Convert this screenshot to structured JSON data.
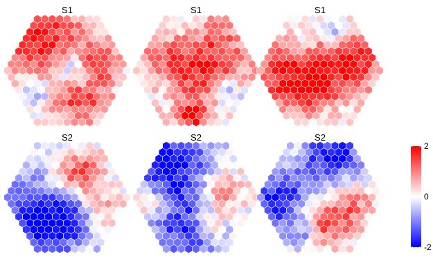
{
  "chart_data": {
    "type": "heatmap",
    "subtype": "hexagonal-map-grid",
    "rows": 2,
    "cols": 3,
    "panel_titles": [
      "S1",
      "S1",
      "S1",
      "S2",
      "S2",
      "S2"
    ],
    "color_scale": {
      "low": "#0000FF",
      "mid": "#FFFFFF",
      "high": "#FF0000",
      "limits": [
        -2,
        2
      ],
      "tick_labels": [
        "2",
        "0",
        "-2"
      ],
      "tick_values": [
        2,
        0,
        -2
      ]
    },
    "panels": [
      {
        "title": "S1",
        "hotspots": [
          {
            "u": 0.3,
            "v": 0.22,
            "value": 1.9,
            "spread": 0.26
          },
          {
            "u": 0.6,
            "v": 0.75,
            "value": 1.5,
            "spread": 0.2
          },
          {
            "u": 0.52,
            "v": 0.5,
            "value": -1.6,
            "spread": 0.13
          },
          {
            "u": 0.78,
            "v": 0.4,
            "value": 1.4,
            "spread": 0.12
          },
          {
            "u": 0.25,
            "v": 0.72,
            "value": -1.2,
            "spread": 0.1
          }
        ]
      },
      {
        "title": "S1",
        "hotspots": [
          {
            "u": 0.5,
            "v": 0.4,
            "value": 1.9,
            "spread": 0.32
          },
          {
            "u": 0.45,
            "v": 0.92,
            "value": 1.8,
            "spread": 0.08
          },
          {
            "u": 0.4,
            "v": 0.12,
            "value": -0.9,
            "spread": 0.14
          },
          {
            "u": 0.78,
            "v": 0.72,
            "value": -1.2,
            "spread": 0.1
          },
          {
            "u": 0.22,
            "v": 0.7,
            "value": -0.6,
            "spread": 0.1
          }
        ]
      },
      {
        "title": "S1",
        "hotspots": [
          {
            "u": 0.25,
            "v": 0.55,
            "value": 1.9,
            "spread": 0.24
          },
          {
            "u": 0.75,
            "v": 0.42,
            "value": 1.9,
            "spread": 0.2
          },
          {
            "u": 0.62,
            "v": 0.15,
            "value": -1.0,
            "spread": 0.1
          },
          {
            "u": 0.48,
            "v": 0.7,
            "value": 0.9,
            "spread": 0.1
          },
          {
            "u": 0.35,
            "v": 0.25,
            "value": -0.6,
            "spread": 0.08
          }
        ]
      },
      {
        "title": "S2",
        "hotspots": [
          {
            "u": 0.25,
            "v": 0.72,
            "value": -1.9,
            "spread": 0.3
          },
          {
            "u": 0.6,
            "v": 0.28,
            "value": 1.7,
            "spread": 0.14
          },
          {
            "u": 0.78,
            "v": 0.6,
            "value": 0.9,
            "spread": 0.12
          },
          {
            "u": 0.5,
            "v": 0.7,
            "value": -0.8,
            "spread": 0.14
          }
        ]
      },
      {
        "title": "S2",
        "hotspots": [
          {
            "u": 0.3,
            "v": 0.22,
            "value": -1.9,
            "spread": 0.26
          },
          {
            "u": 0.45,
            "v": 0.8,
            "value": -1.6,
            "spread": 0.22
          },
          {
            "u": 0.12,
            "v": 0.55,
            "value": 1.2,
            "spread": 0.1
          },
          {
            "u": 0.7,
            "v": 0.45,
            "value": 1.3,
            "spread": 0.14
          },
          {
            "u": 0.62,
            "v": 0.75,
            "value": 1.2,
            "spread": 0.1
          }
        ]
      },
      {
        "title": "S2",
        "hotspots": [
          {
            "u": 0.6,
            "v": 0.1,
            "value": -1.9,
            "spread": 0.18
          },
          {
            "u": 0.18,
            "v": 0.52,
            "value": -1.8,
            "spread": 0.2
          },
          {
            "u": 0.55,
            "v": 0.72,
            "value": 1.7,
            "spread": 0.16
          },
          {
            "u": 0.8,
            "v": 0.55,
            "value": 0.8,
            "spread": 0.12
          },
          {
            "u": 0.35,
            "v": 0.85,
            "value": -1.0,
            "spread": 0.1
          }
        ]
      }
    ]
  }
}
